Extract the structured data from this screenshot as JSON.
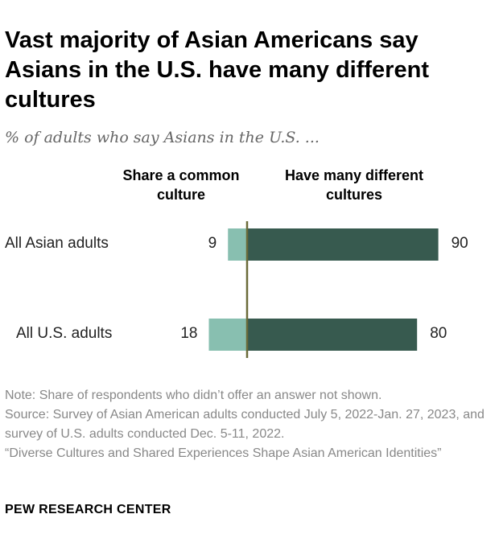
{
  "chart_data": {
    "type": "bar",
    "orientation": "horizontal-diverging",
    "title": "Vast majority of Asian Americans say Asians in the U.S. have many different cultures",
    "subtitle": "% of adults who say Asians in the U.S. ...",
    "categories": [
      "All Asian adults",
      "All U.S. adults"
    ],
    "series": [
      {
        "name": "Share a common culture",
        "values": [
          9,
          18
        ],
        "color": "#88bfb0"
      },
      {
        "name": "Have many different cultures",
        "values": [
          90,
          80
        ],
        "color": "#375a4f"
      }
    ],
    "axis_color": "#6b6b3a"
  },
  "notes": {
    "note": "Note: Share of respondents who didn’t offer an answer not shown.",
    "source": "Source: Survey of Asian American adults conducted July 5, 2022-Jan. 27, 2023, and survey of U.S. adults conducted Dec. 5-11, 2022.",
    "report": "“Diverse Cultures and Shared Experiences Shape Asian American Identities”"
  },
  "brand": "PEW RESEARCH CENTER"
}
